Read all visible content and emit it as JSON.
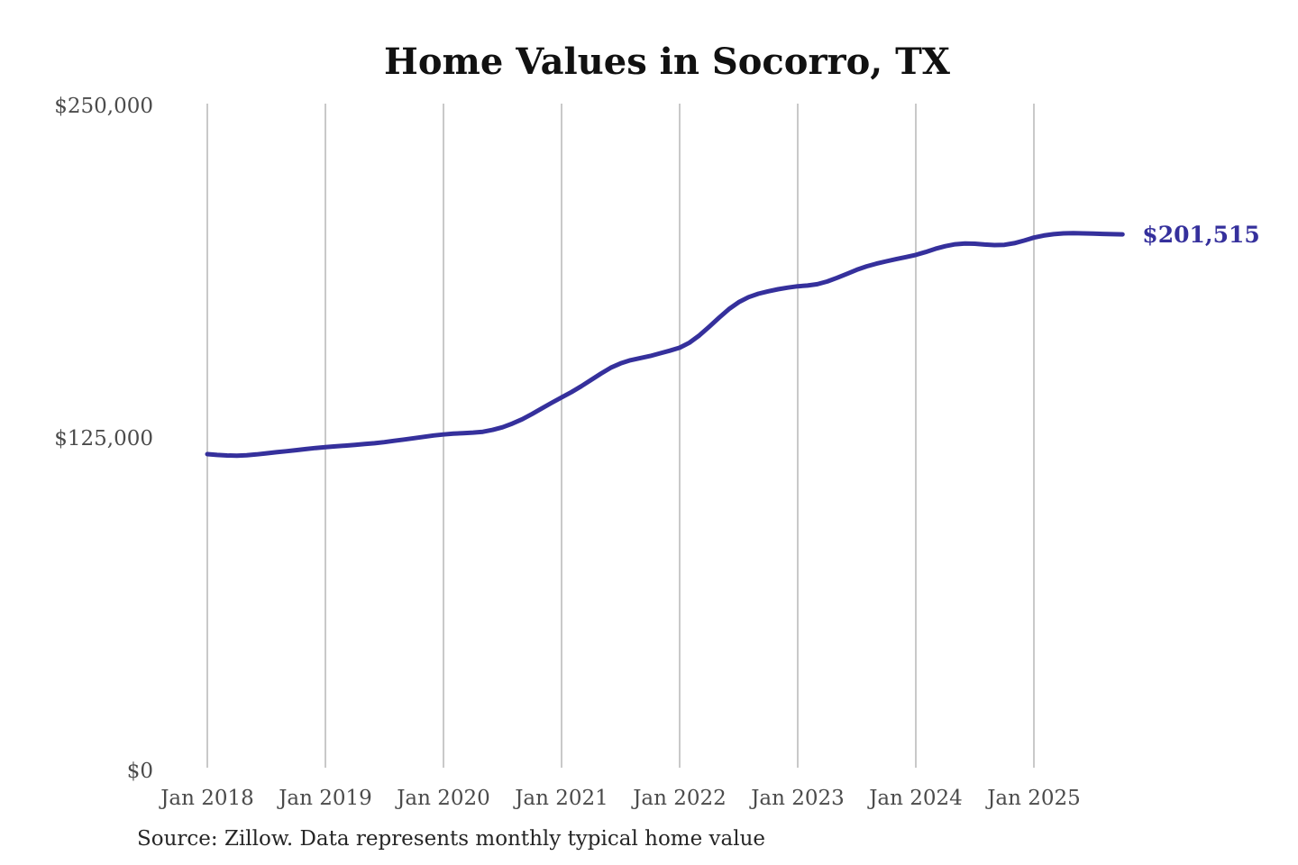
{
  "title": "Home Values in Socorro, TX",
  "end_label": "$201,515",
  "source_note": "Source: Zillow. Data represents monthly typical home value",
  "colors": {
    "line": "#35309c",
    "end_label": "#35309c",
    "gridline": "#c9c9c9",
    "axis_text": "#4b4b4b",
    "title_text": "#111111",
    "source_text": "#262626",
    "background": "#ffffff"
  },
  "chart_data": {
    "type": "line",
    "title": "Home Values in Socorro, TX",
    "xlabel": "",
    "ylabel": "",
    "ylim": [
      0,
      250000
    ],
    "grid": "vertical-only",
    "legend": "none",
    "x_tick_labels": [
      "Jan 2018",
      "Jan 2019",
      "Jan 2020",
      "Jan 2021",
      "Jan 2022",
      "Jan 2023",
      "Jan 2024",
      "Jan 2025"
    ],
    "y_ticks": [
      {
        "label": "$0",
        "value": 0
      },
      {
        "label": "$125,000",
        "value": 125000
      },
      {
        "label": "$250,000",
        "value": 250000
      }
    ],
    "series": [
      {
        "name": "Monthly typical home value",
        "x_start": "2018-01",
        "x_end": "2025-10",
        "frequency": "monthly",
        "values": [
          118900,
          118600,
          118400,
          118300,
          118500,
          118800,
          119200,
          119600,
          120000,
          120400,
          120800,
          121200,
          121500,
          121800,
          122100,
          122400,
          122700,
          123000,
          123400,
          123900,
          124400,
          124900,
          125400,
          125900,
          126300,
          126600,
          126800,
          127000,
          127300,
          128000,
          129000,
          130400,
          132000,
          134000,
          136100,
          138200,
          140200,
          142200,
          144400,
          146800,
          149200,
          151400,
          153000,
          154200,
          155000,
          155800,
          156800,
          157800,
          158900,
          160800,
          163500,
          166800,
          170200,
          173400,
          176000,
          177900,
          179200,
          180100,
          180900,
          181500,
          182000,
          182300,
          182800,
          183800,
          185200,
          186700,
          188200,
          189500,
          190500,
          191400,
          192200,
          193000,
          193800,
          194900,
          196100,
          197100,
          197800,
          198100,
          198000,
          197700,
          197500,
          197600,
          198200,
          199200,
          200300,
          201100,
          201600,
          201900,
          202000,
          201900,
          201800,
          201700,
          201600,
          201515
        ],
        "final_value": 201515
      }
    ]
  }
}
